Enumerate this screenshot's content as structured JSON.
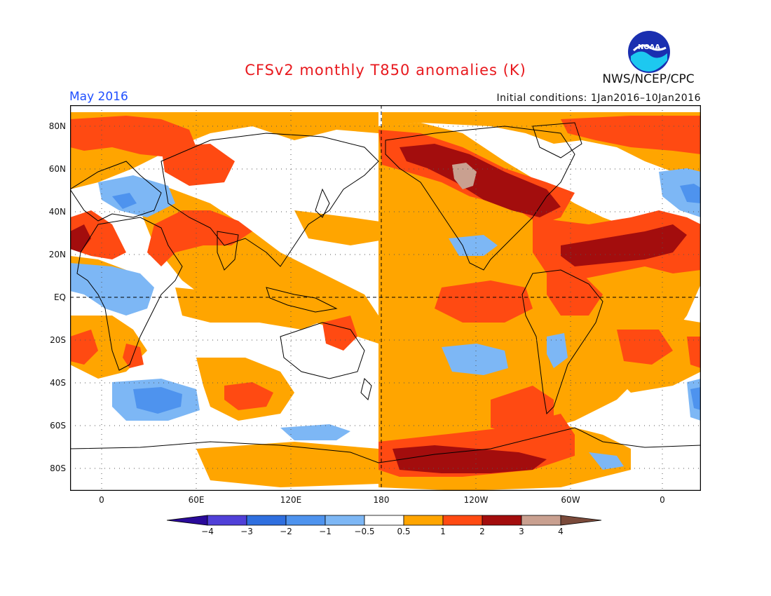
{
  "title": "CFSv2 monthly T850 anomalies (K)",
  "agency": "NWS/NCEP/CPC",
  "logo_text": "NOAA",
  "valid_month": "May 2016",
  "initial_conditions": "Initial conditions: 1Jan2016–10Jan2016",
  "latitude_labels": [
    "80N",
    "60N",
    "40N",
    "20N",
    "EQ",
    "20S",
    "40S",
    "60S",
    "80S"
  ],
  "longitude_labels": [
    "0",
    "60E",
    "120E",
    "180",
    "120W",
    "60W",
    "0"
  ],
  "colorbar": {
    "labels": [
      "−4",
      "−3",
      "−2",
      "−1",
      "−0.5",
      "0.5",
      "1",
      "2",
      "3",
      "4"
    ],
    "colors": [
      "#2a0a9a",
      "#5040d8",
      "#2f6fdf",
      "#4e93ee",
      "#7db7f5",
      "#ffffff",
      "#ffa500",
      "#ff4a12",
      "#a30d0d",
      "#c9a090",
      "#7a4a3a"
    ]
  },
  "anomaly_colors": {
    "cold_1": "#7db7f5",
    "cold_2": "#4e93ee",
    "warm_1": "#ffa500",
    "warm_2": "#ff4a12",
    "warm_3": "#a30d0d",
    "warm_4": "#c9a090"
  }
}
